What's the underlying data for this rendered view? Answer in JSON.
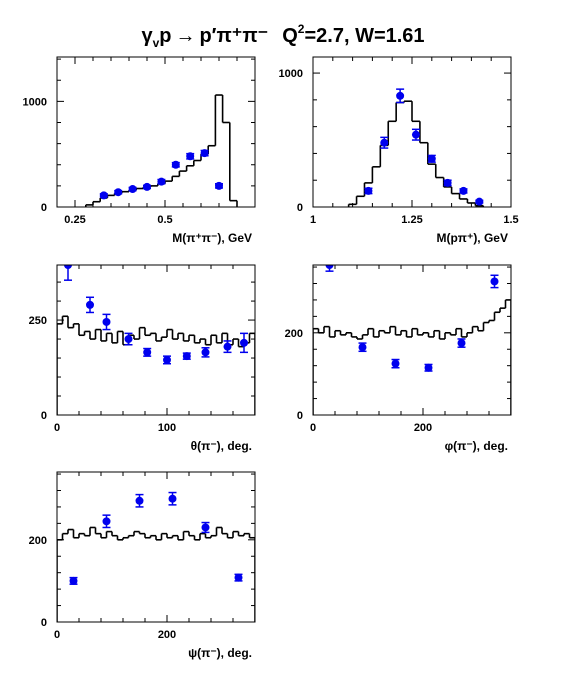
{
  "title": {
    "reaction_lhs": "γ",
    "reaction_lhs_sub": "v",
    "reaction_p": "p",
    "arrow": "→",
    "products": "p′π⁺π⁻",
    "q2_label": "Q",
    "q2_exp": "2",
    "q2_value": "=2.7, W=1.61"
  },
  "colors": {
    "points": "#0000ee",
    "histogram": "#000000",
    "frame": "#000000"
  },
  "chart_data": [
    {
      "type": "histogram+scatter",
      "xlabel": "M(π⁺π⁻), GeV",
      "xlim": [
        0.2,
        0.75
      ],
      "ylim": [
        0,
        1420
      ],
      "xticks": [
        0.25,
        0.5
      ],
      "xtick_labels": [
        "0.25",
        "0.5"
      ],
      "yticks": [
        0,
        1000
      ],
      "ytick_labels": [
        "0",
        "1000"
      ],
      "histogram": {
        "edges": [
          0.28,
          0.3,
          0.32,
          0.34,
          0.36,
          0.38,
          0.4,
          0.42,
          0.44,
          0.46,
          0.48,
          0.5,
          0.52,
          0.54,
          0.56,
          0.58,
          0.6,
          0.62,
          0.64,
          0.66,
          0.68,
          0.7
        ],
        "values": [
          20,
          50,
          85,
          110,
          130,
          145,
          160,
          175,
          190,
          200,
          220,
          245,
          290,
          340,
          390,
          440,
          500,
          580,
          1060,
          800,
          60
        ]
      },
      "points": {
        "x": [
          0.33,
          0.37,
          0.41,
          0.45,
          0.49,
          0.53,
          0.57,
          0.61,
          0.65
        ],
        "y": [
          110,
          140,
          170,
          190,
          240,
          400,
          480,
          510,
          200
        ],
        "err": [
          15,
          15,
          15,
          15,
          20,
          20,
          25,
          25,
          20
        ]
      }
    },
    {
      "type": "histogram+scatter",
      "xlabel": "M(pπ⁺), GeV",
      "xlim": [
        1.0,
        1.5
      ],
      "ylim": [
        0,
        1120
      ],
      "xticks": [
        1.0,
        1.25,
        1.5
      ],
      "xtick_labels": [
        "1",
        "1.25",
        "1.5"
      ],
      "yticks": [
        0,
        1000
      ],
      "ytick_labels": [
        "0",
        "1000"
      ],
      "histogram": {
        "edges": [
          1.09,
          1.11,
          1.13,
          1.15,
          1.17,
          1.19,
          1.21,
          1.23,
          1.25,
          1.27,
          1.29,
          1.31,
          1.33,
          1.35,
          1.37,
          1.39,
          1.41,
          1.43
        ],
        "values": [
          20,
          80,
          180,
          300,
          460,
          640,
          780,
          790,
          640,
          480,
          320,
          220,
          150,
          100,
          60,
          30,
          10
        ]
      },
      "points": {
        "x": [
          1.14,
          1.18,
          1.22,
          1.26,
          1.3,
          1.34,
          1.38,
          1.42
        ],
        "y": [
          120,
          480,
          830,
          540,
          360,
          180,
          120,
          40
        ],
        "err": [
          20,
          40,
          50,
          40,
          25,
          20,
          15,
          10
        ]
      }
    },
    {
      "type": "histogram+scatter",
      "xlabel": "θ(π⁻), deg.",
      "xlim": [
        0,
        180
      ],
      "ylim": [
        0,
        395
      ],
      "xticks": [
        0,
        100
      ],
      "xtick_labels": [
        "0",
        "100"
      ],
      "yticks": [
        0,
        250
      ],
      "ytick_labels": [
        "0",
        "250"
      ],
      "histogram": {
        "edges": [
          0,
          5,
          10,
          15,
          20,
          25,
          30,
          35,
          40,
          45,
          50,
          55,
          60,
          65,
          70,
          75,
          80,
          85,
          90,
          95,
          100,
          105,
          110,
          115,
          120,
          125,
          130,
          135,
          140,
          145,
          150,
          155,
          160,
          165,
          170,
          175,
          180
        ],
        "values": [
          240,
          260,
          230,
          240,
          210,
          220,
          200,
          225,
          195,
          215,
          190,
          220,
          185,
          210,
          200,
          230,
          210,
          215,
          195,
          205,
          225,
          200,
          215,
          195,
          210,
          190,
          200,
          185,
          210,
          190,
          215,
          185,
          200,
          180,
          190,
          215
        ]
      },
      "points": {
        "x": [
          10,
          30,
          45,
          65,
          82,
          100,
          118,
          135,
          155,
          170
        ],
        "y": [
          395,
          290,
          245,
          200,
          165,
          145,
          155,
          165,
          180,
          190
        ],
        "err": [
          40,
          20,
          20,
          15,
          10,
          10,
          8,
          12,
          15,
          25
        ]
      }
    },
    {
      "type": "histogram+scatter",
      "xlabel": "φ(π⁻), deg.",
      "xlim": [
        0,
        360
      ],
      "ylim": [
        0,
        365
      ],
      "xticks": [
        0,
        200
      ],
      "xtick_labels": [
        "0",
        "200"
      ],
      "yticks": [
        0,
        200
      ],
      "ytick_labels": [
        "0",
        "200"
      ],
      "histogram": {
        "edges": [
          0,
          10,
          20,
          30,
          40,
          50,
          60,
          70,
          80,
          90,
          100,
          110,
          120,
          130,
          140,
          150,
          160,
          170,
          180,
          190,
          200,
          210,
          220,
          230,
          240,
          250,
          260,
          270,
          280,
          290,
          300,
          310,
          320,
          330,
          340,
          350,
          360
        ],
        "values": [
          210,
          200,
          215,
          190,
          205,
          195,
          200,
          190,
          185,
          195,
          210,
          190,
          205,
          200,
          215,
          195,
          205,
          190,
          210,
          195,
          200,
          190,
          205,
          185,
          200,
          195,
          210,
          190,
          200,
          215,
          205,
          225,
          230,
          250,
          260,
          280
        ]
      },
      "points": {
        "x": [
          30,
          90,
          150,
          210,
          270,
          330
        ],
        "y": [
          365,
          165,
          125,
          115,
          175,
          325
        ],
        "err": [
          15,
          10,
          10,
          8,
          10,
          15
        ]
      }
    },
    {
      "type": "histogram+scatter",
      "xlabel": "ψ(π⁻), deg.",
      "xlim": [
        0,
        360
      ],
      "ylim": [
        0,
        365
      ],
      "xticks": [
        0,
        200
      ],
      "xtick_labels": [
        "0",
        "200"
      ],
      "yticks": [
        0,
        200
      ],
      "ytick_labels": [
        "0",
        "200"
      ],
      "histogram": {
        "edges": [
          0,
          10,
          20,
          30,
          40,
          50,
          60,
          70,
          80,
          90,
          100,
          110,
          120,
          130,
          140,
          150,
          160,
          170,
          180,
          190,
          200,
          210,
          220,
          230,
          240,
          250,
          260,
          270,
          280,
          290,
          300,
          310,
          320,
          330,
          340,
          350,
          360
        ],
        "values": [
          200,
          215,
          225,
          205,
          215,
          210,
          230,
          215,
          205,
          220,
          210,
          200,
          205,
          210,
          220,
          215,
          205,
          210,
          200,
          215,
          205,
          210,
          200,
          220,
          210,
          200,
          215,
          205,
          210,
          230,
          215,
          205,
          220,
          210,
          215,
          205
        ]
      },
      "points": {
        "x": [
          30,
          90,
          150,
          210,
          270,
          330
        ],
        "y": [
          100,
          245,
          295,
          300,
          230,
          108
        ],
        "err": [
          8,
          15,
          15,
          15,
          12,
          8
        ]
      }
    }
  ]
}
